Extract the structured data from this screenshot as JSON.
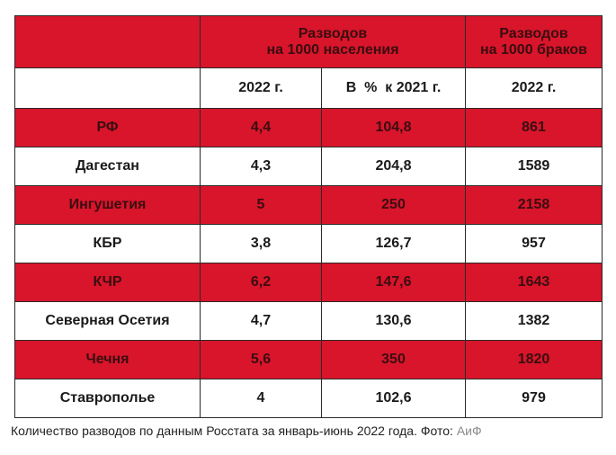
{
  "chart_data": {
    "type": "table",
    "header": {
      "group1": "Разводов\nна 1000 населения",
      "group2": "Разводов\nна 1000 браков",
      "sub": [
        "2022 г.",
        "В  %  к 2021 г.",
        "2022 г."
      ]
    },
    "rows": [
      {
        "region": "РФ",
        "per_1000_pop": "4,4",
        "pct_2021": "104,8",
        "per_1000_marriages": "861",
        "highlight": true
      },
      {
        "region": "Дагестан",
        "per_1000_pop": "4,3",
        "pct_2021": "204,8",
        "per_1000_marriages": "1589",
        "highlight": false
      },
      {
        "region": "Ингушетия",
        "per_1000_pop": "5",
        "pct_2021": "250",
        "per_1000_marriages": "2158",
        "highlight": true
      },
      {
        "region": "КБР",
        "per_1000_pop": "3,8",
        "pct_2021": "126,7",
        "per_1000_marriages": "957",
        "highlight": false
      },
      {
        "region": "КЧР",
        "per_1000_pop": "6,2",
        "pct_2021": "147,6",
        "per_1000_marriages": "1643",
        "highlight": true
      },
      {
        "region": "Северная Осетия",
        "per_1000_pop": "4,7",
        "pct_2021": "130,6",
        "per_1000_marriages": "1382",
        "highlight": false
      },
      {
        "region": "Чечня",
        "per_1000_pop": "5,6",
        "pct_2021": "350",
        "per_1000_marriages": "1820",
        "highlight": true
      },
      {
        "region": "Ставрополье",
        "per_1000_pop": "4",
        "pct_2021": "102,6",
        "per_1000_marriages": "979",
        "highlight": false
      }
    ]
  },
  "caption": {
    "text": "Количество разводов по данным Росстата за январь-июнь 2022 года. Фото: ",
    "source": "АиФ"
  },
  "colors": {
    "accent": "#d8152b",
    "caption_source": "#8a8a8a"
  }
}
